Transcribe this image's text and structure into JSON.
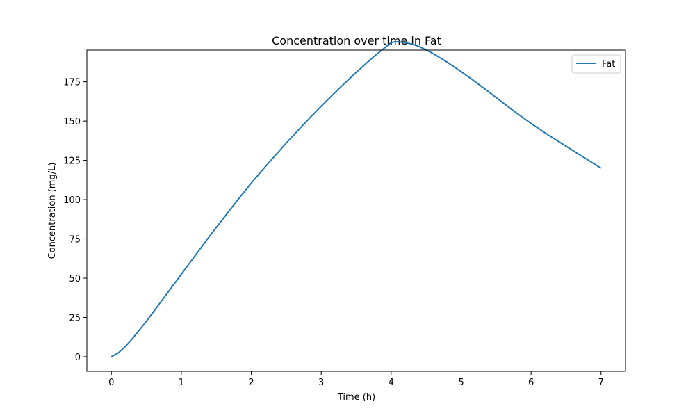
{
  "chart_data": {
    "type": "line",
    "title": "Concentration over time in Fat",
    "xlabel": "Time (h)",
    "ylabel": "Concentration (mg/L)",
    "xlim": [
      -0.35,
      7.35
    ],
    "ylim": [
      -9.3,
      195.2
    ],
    "xticks": [
      0,
      1,
      2,
      3,
      4,
      5,
      6,
      7
    ],
    "yticks": [
      0,
      25,
      50,
      75,
      100,
      125,
      150,
      175
    ],
    "grid": false,
    "legend_position": "top-right",
    "series": [
      {
        "name": "Fat",
        "color": "#1f77b4",
        "x": [
          0,
          0.1,
          0.2,
          0.3,
          0.4,
          0.5,
          0.6,
          0.7,
          0.8,
          1.0,
          1.2,
          1.4,
          1.6,
          1.8,
          2.0,
          2.25,
          2.5,
          2.75,
          3.0,
          3.25,
          3.5,
          3.75,
          4.0,
          4.05,
          4.1,
          4.2,
          4.3,
          4.4,
          4.6,
          4.8,
          5.0,
          5.25,
          5.5,
          5.75,
          6.0,
          6.25,
          6.5,
          6.75,
          7.0
        ],
        "y": [
          0,
          2.5,
          6.5,
          11.5,
          17,
          22.5,
          28.5,
          34.5,
          40.5,
          52.5,
          64.5,
          76.5,
          88,
          99.5,
          110.5,
          123.5,
          136,
          148,
          159.5,
          170.5,
          181,
          191,
          200,
          200.5,
          200.5,
          200,
          199,
          197.5,
          193,
          187.5,
          181.5,
          173.5,
          165,
          156.5,
          148.5,
          141,
          134,
          127,
          120
        ]
      }
    ]
  }
}
